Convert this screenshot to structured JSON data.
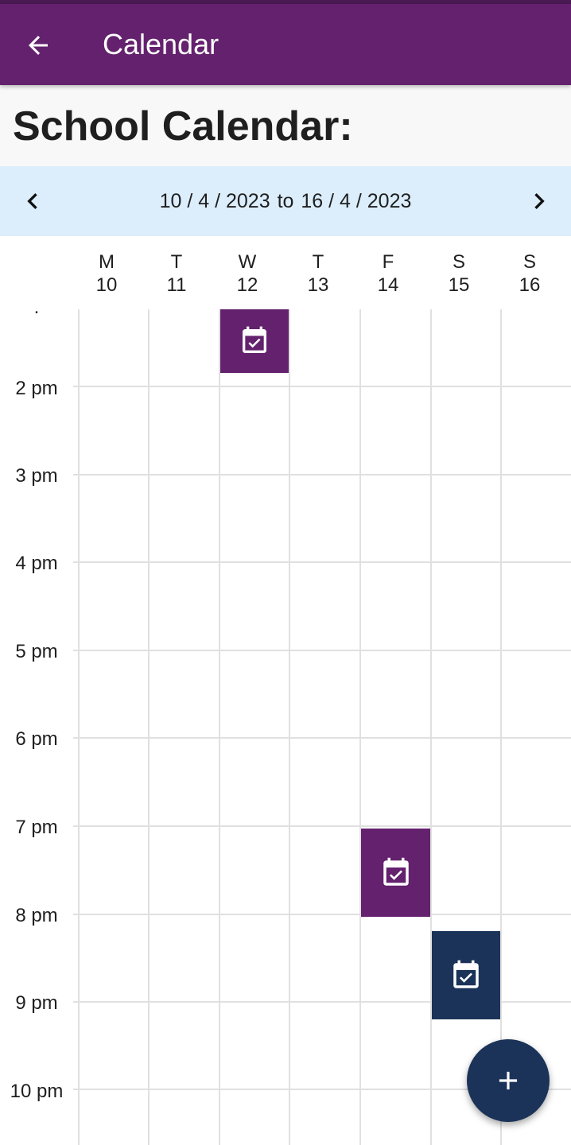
{
  "app_bar": {
    "title": "Calendar"
  },
  "page": {
    "title": "School Calendar:"
  },
  "week_nav": {
    "start": "10 / 4 / 2023",
    "separator": "to",
    "end": "16 / 4 / 2023"
  },
  "days": [
    {
      "letter": "M",
      "date": "10"
    },
    {
      "letter": "T",
      "date": "11"
    },
    {
      "letter": "W",
      "date": "12"
    },
    {
      "letter": "T",
      "date": "13"
    },
    {
      "letter": "F",
      "date": "14"
    },
    {
      "letter": "S",
      "date": "15"
    },
    {
      "letter": "S",
      "date": "16"
    }
  ],
  "hours": [
    "2 pm",
    "3 pm",
    "4 pm",
    "5 pm",
    "6 pm",
    "7 pm",
    "8 pm",
    "9 pm",
    "10 pm"
  ],
  "events": [
    {
      "day": "W 12",
      "color": "#64216e",
      "icon": "event-available-icon"
    },
    {
      "day": "F 14",
      "color": "#64216e",
      "icon": "event-available-icon"
    },
    {
      "day": "S 15",
      "color": "#1b3358",
      "icon": "event-available-icon"
    }
  ],
  "icons": {
    "back": "arrow-left-icon",
    "prev": "chevron-left-icon",
    "next": "chevron-right-icon",
    "fab": "plus-icon"
  },
  "colors": {
    "app_bar": "#64216e",
    "nav_bg": "#dceefc",
    "fab": "#1b3358"
  }
}
